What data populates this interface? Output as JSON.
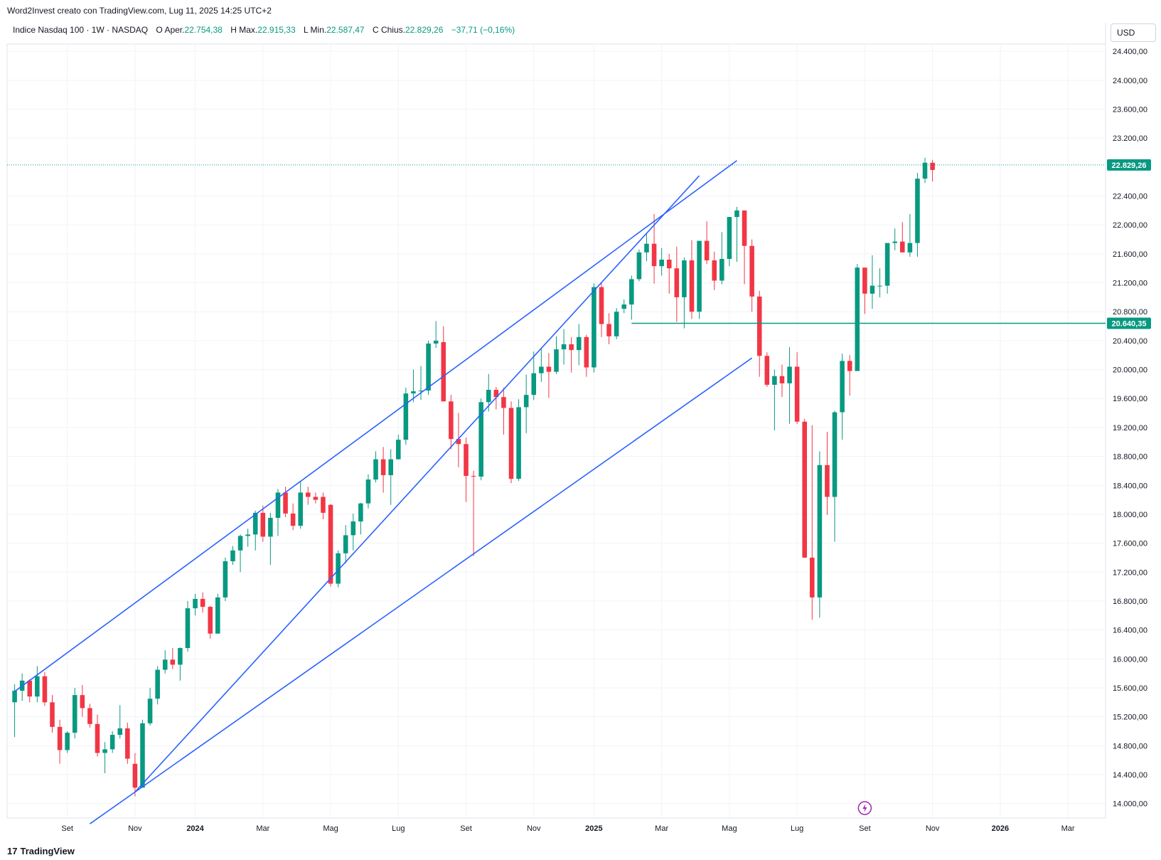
{
  "header": {
    "credit": "Word2Invest creato con TradingView.com, Lug 11, 2025 14:25 UTC+2"
  },
  "legend": {
    "symbol": "Indice Nasdaq 100 · 1W · NASDAQ",
    "open_label": "O",
    "open_text": "Aper.",
    "open_value": "22.754,38",
    "high_label": "H",
    "high_text": "Max.",
    "high_value": "22.915,33",
    "low_label": "L",
    "low_text": "Min.",
    "low_value": "22.587,47",
    "close_label": "C",
    "close_text": "Chius.",
    "close_value": "22.829,26",
    "change_value": "−37,71 (−0,16%)"
  },
  "currency_button": "USD",
  "footer": {
    "brand": "TradingView",
    "logo_glyph": "17"
  },
  "colors": {
    "up": "#089981",
    "down": "#f23645",
    "trendline": "#2962ff",
    "grid": "#f0f3fa",
    "hline": "#089981",
    "event_icon": "#9c27b0"
  },
  "chart_data": {
    "type": "candlestick",
    "x_axis": {
      "labels": [
        "Set",
        "Nov",
        "2024",
        "Mar",
        "Mag",
        "Lug",
        "Set",
        "Nov",
        "2025",
        "Mar",
        "Mag",
        "Lug",
        "Set",
        "Nov",
        "2026",
        "Mar"
      ],
      "bold_labels": [
        "2024",
        "2025",
        "2026"
      ],
      "label_weeks": [
        7,
        16,
        24,
        33,
        42,
        51,
        60,
        69,
        77,
        86,
        95,
        104,
        113,
        122,
        131,
        140
      ],
      "weeks_range": [
        -1,
        145
      ]
    },
    "y_axis": {
      "ylim": [
        13800,
        24500
      ],
      "ticks": [
        14000,
        14400,
        14800,
        15200,
        15600,
        16000,
        16400,
        16800,
        17200,
        17600,
        18000,
        18400,
        18800,
        19200,
        19600,
        20000,
        20400,
        20800,
        21200,
        21600,
        22000,
        22400,
        23200,
        23600,
        24000,
        24400
      ],
      "tick_labels": [
        "14.000,00",
        "14.400,00",
        "14.800,00",
        "15.200,00",
        "15.600,00",
        "16.000,00",
        "16.400,00",
        "16.800,00",
        "17.200,00",
        "17.600,00",
        "18.000,00",
        "18.400,00",
        "18.800,00",
        "19.200,00",
        "19.600,00",
        "20.000,00",
        "20.400,00",
        "20.800,00",
        "21.200,00",
        "21.600,00",
        "22.000,00",
        "22.400,00",
        "23.200,00",
        "23.600,00",
        "24.000,00",
        "24.400,00"
      ]
    },
    "price_labels": [
      {
        "value": 22829.26,
        "label": "22.829,26",
        "style": "dotted"
      },
      {
        "value": 20640.35,
        "label": "20.640,35",
        "style": "solid"
      }
    ],
    "candles_ohlc": [
      [
        15400,
        15650,
        14920,
        15560
      ],
      [
        15560,
        15800,
        15420,
        15700
      ],
      [
        15700,
        15720,
        15400,
        15480
      ],
      [
        15480,
        15900,
        15400,
        15760
      ],
      [
        15760,
        15820,
        15350,
        15400
      ],
      [
        15400,
        15500,
        14980,
        15060
      ],
      [
        15060,
        15160,
        14550,
        14740
      ],
      [
        14740,
        15000,
        14700,
        14980
      ],
      [
        14980,
        15600,
        14900,
        15500
      ],
      [
        15500,
        15640,
        15200,
        15320
      ],
      [
        15320,
        15380,
        15050,
        15100
      ],
      [
        15100,
        15230,
        14650,
        14700
      ],
      [
        14700,
        14850,
        14420,
        14750
      ],
      [
        14750,
        15000,
        14700,
        14950
      ],
      [
        14950,
        15360,
        14900,
        15040
      ],
      [
        15040,
        15120,
        14550,
        14620
      ],
      [
        14550,
        14700,
        14100,
        14220
      ],
      [
        14220,
        15160,
        14220,
        15110
      ],
      [
        15110,
        15600,
        15080,
        15450
      ],
      [
        15450,
        15900,
        15370,
        15850
      ],
      [
        15850,
        16120,
        15800,
        15990
      ],
      [
        15990,
        16150,
        15860,
        15920
      ],
      [
        15920,
        16160,
        15700,
        16150
      ],
      [
        16150,
        16800,
        16100,
        16700
      ],
      [
        16700,
        16900,
        16600,
        16830
      ],
      [
        16830,
        16920,
        16640,
        16720
      ],
      [
        16720,
        16730,
        16280,
        16350
      ],
      [
        16350,
        16900,
        16350,
        16850
      ],
      [
        16850,
        17400,
        16800,
        17350
      ],
      [
        17350,
        17560,
        17300,
        17500
      ],
      [
        17500,
        17720,
        17200,
        17700
      ],
      [
        17700,
        17800,
        17550,
        17720
      ],
      [
        17720,
        18050,
        17500,
        18020
      ],
      [
        18020,
        18120,
        17620,
        17690
      ],
      [
        17690,
        18020,
        17300,
        17950
      ],
      [
        17950,
        18350,
        17700,
        18300
      ],
      [
        18300,
        18380,
        17960,
        18010
      ],
      [
        18010,
        18150,
        17780,
        17840
      ],
      [
        17840,
        18450,
        17800,
        18300
      ],
      [
        18300,
        18380,
        18130,
        18240
      ],
      [
        18240,
        18300,
        18150,
        18200
      ],
      [
        18240,
        18300,
        17930,
        18020
      ],
      [
        18130,
        18140,
        17000,
        17040
      ],
      [
        17040,
        17500,
        16990,
        17460
      ],
      [
        17460,
        17850,
        17320,
        17710
      ],
      [
        17710,
        18010,
        17500,
        17900
      ],
      [
        17900,
        18160,
        17720,
        18150
      ],
      [
        18150,
        18550,
        18080,
        18480
      ],
      [
        18480,
        18870,
        18440,
        18760
      ],
      [
        18760,
        18930,
        18300,
        18540
      ],
      [
        18540,
        18900,
        18130,
        18760
      ],
      [
        18760,
        19100,
        18760,
        19030
      ],
      [
        19030,
        19750,
        18960,
        19670
      ],
      [
        19670,
        20000,
        19550,
        19700
      ],
      [
        19700,
        20050,
        19580,
        19710
      ],
      [
        19710,
        20400,
        19650,
        20360
      ],
      [
        20360,
        20670,
        20300,
        20400
      ],
      [
        20380,
        20600,
        19650,
        19560
      ],
      [
        19560,
        19650,
        18900,
        19040
      ],
      [
        19040,
        19400,
        18650,
        18970
      ],
      [
        18970,
        19060,
        18170,
        18530
      ],
      [
        18530,
        18600,
        17420,
        18520
      ],
      [
        18520,
        19600,
        18470,
        19550
      ],
      [
        19550,
        19940,
        19420,
        19720
      ],
      [
        19720,
        19760,
        19450,
        19620
      ],
      [
        19620,
        19750,
        19100,
        19470
      ],
      [
        19470,
        19560,
        18430,
        18490
      ],
      [
        18490,
        19590,
        18460,
        19480
      ],
      [
        19480,
        19930,
        19120,
        19650
      ],
      [
        19650,
        20250,
        19580,
        19950
      ],
      [
        19950,
        20300,
        19830,
        20040
      ],
      [
        20040,
        20230,
        19610,
        19970
      ],
      [
        19970,
        20460,
        19940,
        20280
      ],
      [
        20280,
        20560,
        20070,
        20350
      ],
      [
        20350,
        20450,
        19960,
        20270
      ],
      [
        20270,
        20630,
        20060,
        20450
      ],
      [
        20450,
        20480,
        19900,
        20030
      ],
      [
        20030,
        21190,
        19960,
        21140
      ],
      [
        21140,
        21210,
        20450,
        20630
      ],
      [
        20630,
        20780,
        20350,
        20460
      ],
      [
        20460,
        20850,
        20420,
        20800
      ],
      [
        20840,
        20970,
        20780,
        20900
      ],
      [
        20900,
        21300,
        20690,
        21250
      ],
      [
        21250,
        21660,
        21220,
        21620
      ],
      [
        21620,
        21880,
        21500,
        21740
      ],
      [
        21740,
        22150,
        21190,
        21430
      ],
      [
        21430,
        21680,
        21300,
        21520
      ],
      [
        21520,
        21600,
        21050,
        21400
      ],
      [
        21400,
        21700,
        20660,
        21000
      ],
      [
        21000,
        21550,
        20570,
        21510
      ],
      [
        21510,
        21790,
        20700,
        20800
      ],
      [
        20800,
        21750,
        20700,
        21780
      ],
      [
        21780,
        22050,
        21460,
        21510
      ],
      [
        21510,
        21630,
        21100,
        21230
      ],
      [
        21230,
        21900,
        21180,
        21530
      ],
      [
        21530,
        22100,
        21430,
        22110
      ],
      [
        22110,
        22250,
        21490,
        22200
      ],
      [
        22200,
        21780,
        21180,
        21710
      ],
      [
        21710,
        21800,
        20800,
        21010
      ],
      [
        21010,
        21090,
        19900,
        20190
      ],
      [
        20190,
        20240,
        19760,
        19790
      ],
      [
        19790,
        20000,
        19160,
        19910
      ],
      [
        19910,
        20070,
        19620,
        19810
      ],
      [
        19810,
        20310,
        19250,
        20040
      ],
      [
        20040,
        20240,
        19250,
        19280
      ],
      [
        19280,
        19320,
        17400,
        17400
      ],
      [
        17400,
        19230,
        16540,
        16850
      ],
      [
        16850,
        18870,
        16570,
        18680
      ],
      [
        18680,
        19140,
        17990,
        18240
      ],
      [
        18240,
        19430,
        17620,
        19410
      ],
      [
        19410,
        20220,
        19030,
        20120
      ],
      [
        20120,
        20200,
        19640,
        19980
      ],
      [
        19980,
        21460,
        20660,
        21410
      ],
      [
        21410,
        21280,
        20770,
        21050
      ],
      [
        21050,
        21580,
        20840,
        21160
      ],
      [
        21160,
        21400,
        21000,
        21160
      ],
      [
        21160,
        21520,
        21050,
        21750
      ],
      [
        21750,
        21950,
        21650,
        21770
      ],
      [
        21770,
        22040,
        21620,
        21620
      ],
      [
        21620,
        22150,
        21560,
        21750
      ],
      [
        21750,
        22720,
        21560,
        22640
      ],
      [
        22640,
        22930,
        22580,
        22860
      ],
      [
        22860,
        22900,
        22600,
        22760
      ]
    ],
    "candle_week_start": 0,
    "trendlines": [
      {
        "from": [
          0,
          15550
        ],
        "to": [
          96,
          22890
        ]
      },
      {
        "from": [
          16,
          14160
        ],
        "to": [
          91,
          22680
        ]
      },
      {
        "from": [
          10,
          13720
        ],
        "to": [
          98,
          20160
        ]
      }
    ],
    "hline": {
      "from_week": 82,
      "value": 20640.35
    },
    "event_marker_week": 113
  }
}
